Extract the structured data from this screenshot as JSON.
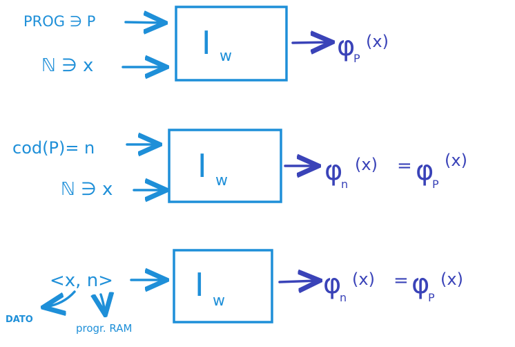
{
  "diagrams": [
    {
      "inputs": [
        "PROG ∋ P",
        "ℕ ∋ x"
      ],
      "box_label": "I",
      "box_sub": "w",
      "output": "φ",
      "output_sub": "P",
      "output_arg": "(x)",
      "output_eq": "",
      "output2": "",
      "output2_sub": "",
      "output2_arg": ""
    },
    {
      "inputs": [
        "cod(P)= n",
        "ℕ ∋ x"
      ],
      "box_label": "I",
      "box_sub": "w",
      "output": "φ",
      "output_sub": "n",
      "output_arg": "(x)",
      "output_eq": "=",
      "output2": "φ",
      "output2_sub": "P",
      "output2_arg": "(x)"
    },
    {
      "inputs": [
        "<x, n>"
      ],
      "box_label": "I",
      "box_sub": "w",
      "output": "φ",
      "output_sub": "n",
      "output_arg": "(x)",
      "output_eq": "=",
      "output2": "φ",
      "output2_sub": "P",
      "output2_arg": "(x)"
    }
  ],
  "annotations": {
    "dato": "DATO",
    "prog_ram": "progr. RAM"
  },
  "colors": {
    "cyan": "#1e8fd8",
    "blue": "#3a43b8"
  }
}
